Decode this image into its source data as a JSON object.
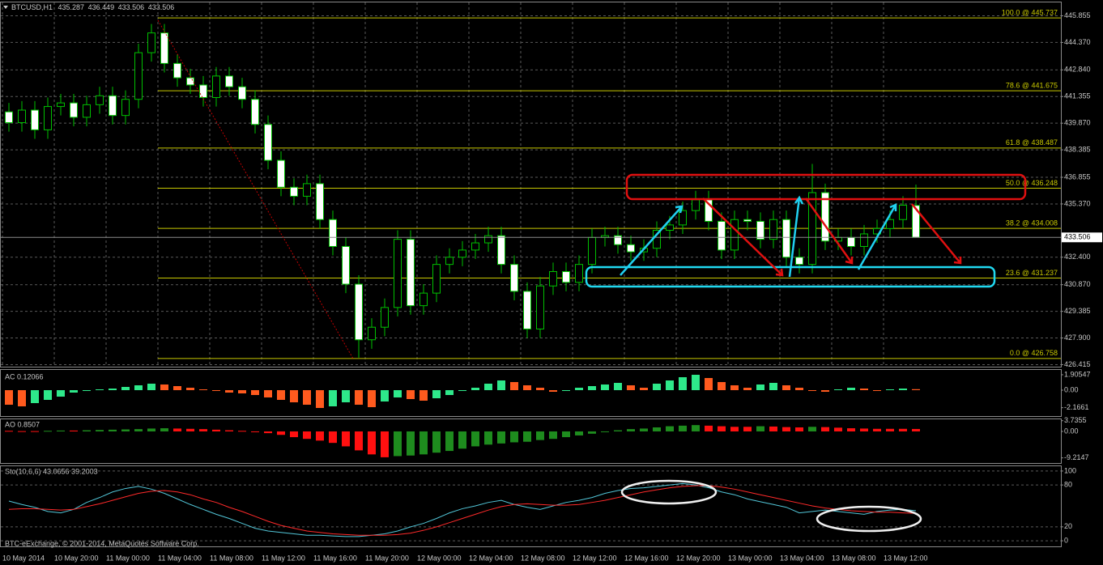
{
  "footer": "BTC-eExchange, © 2001-2014, MetaQuotes Software Corp.",
  "chart_data": [
    {
      "type": "candlestick",
      "symbol": "BTCUSD,H1",
      "x": [
        "10 May 2014",
        null,
        null,
        null,
        "10 May 20:00",
        null,
        null,
        null,
        "11 May 00:00",
        null,
        null,
        null,
        "11 May 04:00",
        null,
        null,
        null,
        "11 May 08:00",
        null,
        null,
        null,
        "11 May 12:00",
        null,
        null,
        null,
        "11 May 16:00",
        null,
        null,
        null,
        "11 May 20:00",
        null,
        null,
        null,
        "12 May 00:00",
        null,
        null,
        null,
        "12 May 04:00",
        null,
        null,
        null,
        "12 May 08:00",
        null,
        null,
        null,
        "12 May 12:00",
        null,
        null,
        null,
        "12 May 16:00",
        null,
        null,
        null,
        "12 May 20:00",
        null,
        null,
        null,
        "13 May 00:00",
        null,
        null,
        null,
        "13 May 04:00",
        null,
        null,
        null,
        "13 May 08:00",
        null,
        null,
        null,
        "13 May 12:00",
        null,
        null
      ],
      "ohlc": [
        [
          440.5,
          441.0,
          439.4,
          439.9
        ],
        [
          439.9,
          441.1,
          439.4,
          440.6
        ],
        [
          440.6,
          441.1,
          439.0,
          439.5
        ],
        [
          439.5,
          441.3,
          439.0,
          440.8
        ],
        [
          440.8,
          441.5,
          440.3,
          441.0
        ],
        [
          441.0,
          441.5,
          439.7,
          440.2
        ],
        [
          440.2,
          441.4,
          439.7,
          440.9
        ],
        [
          440.9,
          441.9,
          440.4,
          441.4
        ],
        [
          441.4,
          441.9,
          439.8,
          440.3
        ],
        [
          440.3,
          441.7,
          439.8,
          441.2
        ],
        [
          441.2,
          444.3,
          440.7,
          443.8
        ],
        [
          443.8,
          445.4,
          443.3,
          444.9
        ],
        [
          444.9,
          445.4,
          442.7,
          443.2
        ],
        [
          443.2,
          443.7,
          441.9,
          442.4
        ],
        [
          442.4,
          442.9,
          441.5,
          442.0
        ],
        [
          442.0,
          442.5,
          440.8,
          441.3
        ],
        [
          441.3,
          443.0,
          440.8,
          442.5
        ],
        [
          442.5,
          443.0,
          441.4,
          441.9
        ],
        [
          441.9,
          442.4,
          440.7,
          441.2
        ],
        [
          441.2,
          441.7,
          439.3,
          439.8
        ],
        [
          439.8,
          440.3,
          437.3,
          437.8
        ],
        [
          437.8,
          438.3,
          435.8,
          436.3
        ],
        [
          436.3,
          436.8,
          435.3,
          435.8
        ],
        [
          435.8,
          437.0,
          435.3,
          436.5
        ],
        [
          436.5,
          437.0,
          434.0,
          434.5
        ],
        [
          434.5,
          435.0,
          432.5,
          433.0
        ],
        [
          433.0,
          433.5,
          430.4,
          430.9
        ],
        [
          430.9,
          431.4,
          426.8,
          427.8
        ],
        [
          427.8,
          429.0,
          427.3,
          428.5
        ],
        [
          428.5,
          430.1,
          428.0,
          429.6
        ],
        [
          429.6,
          433.9,
          429.1,
          433.4
        ],
        [
          433.4,
          433.9,
          429.2,
          429.7
        ],
        [
          429.7,
          430.9,
          429.2,
          430.4
        ],
        [
          430.4,
          432.5,
          429.9,
          432.0
        ],
        [
          432.0,
          432.9,
          431.5,
          432.4
        ],
        [
          432.4,
          433.3,
          431.9,
          432.8
        ],
        [
          432.8,
          433.7,
          432.3,
          433.2
        ],
        [
          433.2,
          434.1,
          432.7,
          433.6
        ],
        [
          433.6,
          434.1,
          431.5,
          432.0
        ],
        [
          432.0,
          432.5,
          430.0,
          430.5
        ],
        [
          430.5,
          431.0,
          427.9,
          428.4
        ],
        [
          428.4,
          431.3,
          427.9,
          430.8
        ],
        [
          430.8,
          432.1,
          430.3,
          431.6
        ],
        [
          431.6,
          432.1,
          430.5,
          431.0
        ],
        [
          431.0,
          432.5,
          430.5,
          432.0
        ],
        [
          432.0,
          434.0,
          431.5,
          433.5
        ],
        [
          433.5,
          434.1,
          433.0,
          433.6
        ],
        [
          433.6,
          434.1,
          432.6,
          433.1
        ],
        [
          433.1,
          433.6,
          432.2,
          432.7
        ],
        [
          432.7,
          433.4,
          432.2,
          432.9
        ],
        [
          432.9,
          434.4,
          432.4,
          433.9
        ],
        [
          433.9,
          434.7,
          433.4,
          434.2
        ],
        [
          434.2,
          435.5,
          433.7,
          435.0
        ],
        [
          435.0,
          436.1,
          434.5,
          435.6
        ],
        [
          435.6,
          436.1,
          433.9,
          434.4
        ],
        [
          434.4,
          434.9,
          432.3,
          432.8
        ],
        [
          432.8,
          435.0,
          432.3,
          434.5
        ],
        [
          434.5,
          435.0,
          433.9,
          434.4
        ],
        [
          434.4,
          434.9,
          432.9,
          433.4
        ],
        [
          433.4,
          435.0,
          432.9,
          434.5
        ],
        [
          434.5,
          435.0,
          431.9,
          432.4
        ],
        [
          432.4,
          432.9,
          431.5,
          432.0
        ],
        [
          432.0,
          437.6,
          431.5,
          436.0
        ],
        [
          436.0,
          436.5,
          432.8,
          433.3
        ],
        [
          433.3,
          434.0,
          432.8,
          433.5
        ],
        [
          433.5,
          434.0,
          432.5,
          433.0
        ],
        [
          433.0,
          434.2,
          432.5,
          433.7
        ],
        [
          433.7,
          434.5,
          433.2,
          434.0
        ],
        [
          434.0,
          435.0,
          433.5,
          434.5
        ],
        [
          434.5,
          435.8,
          434.0,
          435.3
        ],
        [
          435.287,
          436.449,
          433.506,
          433.506
        ]
      ],
      "up_color": "#00c000",
      "down_color": "#ffffff",
      "grid": true,
      "ylim": [
        426.3,
        446.6
      ],
      "yticks": [
        445.855,
        {
          "value": 444.37,
          "label": "444.370"
        },
        {
          "value": 442.84,
          "label": "442.840"
        },
        441.355,
        {
          "value": 439.87,
          "label": "439.870"
        },
        438.385,
        436.855,
        {
          "value": 435.37,
          "label": "435.370"
        },
        {
          "value": 432.4,
          "label": "432.400"
        },
        {
          "value": 430.87,
          "label": "430.870"
        },
        429.385,
        {
          "value": 427.9,
          "label": "427.900"
        },
        426.415
      ],
      "fib_color": "#c8c800",
      "fib_levels": [
        {
          "value": 445.737,
          "label": "100.0 @ 445.737"
        },
        {
          "value": 441.675,
          "label": "78.6 @ 441.675"
        },
        {
          "value": 438.487,
          "label": "61.8 @ 438.487"
        },
        {
          "value": 436.248,
          "label": "50.0 @ 436.248"
        },
        {
          "value": 434.008,
          "label": "38.2 @ 434.008"
        },
        {
          "value": 431.237,
          "label": "23.6 @ 431.237"
        },
        {
          "value": 426.758,
          "label": "0.0 @ 426.758"
        }
      ]
    },
    {
      "type": "bar",
      "title": "AC 0.12066",
      "up_color": "#2ee88a",
      "down_color": "#ff5a1e",
      "grid": false,
      "ylim": [
        -3.2,
        2.6
      ],
      "yticks": [
        1.90547,
        {
          "value": 0,
          "label": "0.00"
        },
        -2.1661
      ],
      "values": [
        -1.8,
        -2.0,
        -1.6,
        -1.2,
        -0.8,
        -0.3,
        -0.1,
        0.1,
        0.2,
        0.4,
        0.6,
        0.8,
        0.7,
        0.5,
        0.3,
        0.1,
        -0.1,
        -0.3,
        -0.4,
        -0.6,
        -0.9,
        -1.2,
        -1.5,
        -1.8,
        -2.2,
        -2.0,
        -1.5,
        -1.8,
        -2.1,
        -1.4,
        -0.9,
        -1.1,
        -1.3,
        -1.0,
        -0.6,
        -0.1,
        0.3,
        0.8,
        1.2,
        1.0,
        0.6,
        0.3,
        -0.2,
        0.0,
        0.3,
        0.5,
        0.7,
        0.9,
        0.6,
        0.3,
        0.8,
        1.2,
        1.6,
        1.9,
        1.5,
        1.0,
        0.6,
        0.3,
        0.7,
        0.9,
        0.6,
        0.3,
        -0.1,
        -0.2,
        0.1,
        0.3,
        0.2,
        -0.1,
        0.1,
        0.2,
        0.12066
      ]
    },
    {
      "type": "bar",
      "title": "AO 0.8507",
      "up_color": "#1e8c1e",
      "down_color": "#ff1010",
      "grid": false,
      "ylim": [
        -11,
        4.5
      ],
      "yticks": [
        3.7355,
        {
          "value": 0,
          "label": "0.00"
        },
        -9.2147
      ],
      "values": [
        0.2,
        0.1,
        0.1,
        0.2,
        0.3,
        0.3,
        0.4,
        0.5,
        0.6,
        0.7,
        0.8,
        1.0,
        1.1,
        1.0,
        0.9,
        0.8,
        0.6,
        0.4,
        0.2,
        -0.1,
        -0.6,
        -1.2,
        -2.0,
        -2.6,
        -3.2,
        -4.0,
        -5.2,
        -6.6,
        -8.0,
        -9.0,
        -8.6,
        -8.4,
        -8.0,
        -7.4,
        -6.8,
        -6.0,
        -5.2,
        -4.6,
        -4.2,
        -3.8,
        -3.6,
        -3.0,
        -2.6,
        -2.0,
        -1.4,
        -0.8,
        -0.2,
        0.4,
        0.8,
        1.0,
        1.4,
        1.8,
        2.0,
        2.2,
        2.0,
        1.8,
        1.6,
        1.6,
        1.8,
        1.7,
        1.5,
        1.4,
        1.6,
        1.5,
        1.3,
        1.1,
        1.0,
        0.9,
        0.9,
        0.9,
        0.8507
      ]
    },
    {
      "type": "line",
      "title": "Sto(10,6,6) 43.0656 39.2003",
      "grid": true,
      "ylim": [
        -8,
        108
      ],
      "yticks": [
        100,
        80,
        20,
        0
      ],
      "series": [
        {
          "color": "#52c6d8",
          "values": [
            57,
            52,
            48,
            42,
            40,
            45,
            55,
            62,
            70,
            75,
            78,
            74,
            68,
            60,
            52,
            45,
            38,
            32,
            25,
            18,
            14,
            12,
            10,
            8,
            8,
            7,
            6,
            6,
            8,
            10,
            14,
            20,
            25,
            32,
            40,
            46,
            50,
            55,
            58,
            52,
            48,
            45,
            50,
            55,
            58,
            62,
            68,
            72,
            75,
            76,
            78,
            80,
            82,
            80,
            76,
            70,
            66,
            60,
            56,
            52,
            48,
            40,
            42,
            44,
            42,
            40,
            38,
            42,
            44,
            45,
            43.0656
          ]
        },
        {
          "color": "#ff2a2a",
          "values": [
            45,
            46,
            46,
            45,
            44,
            45,
            49,
            53,
            58,
            63,
            68,
            71,
            72,
            70,
            66,
            60,
            55,
            48,
            42,
            35,
            28,
            22,
            18,
            14,
            12,
            10,
            9,
            8,
            8,
            8,
            9,
            11,
            15,
            20,
            26,
            32,
            38,
            44,
            49,
            52,
            53,
            52,
            51,
            51,
            52,
            55,
            58,
            62,
            66,
            70,
            73,
            76,
            78,
            79,
            79,
            77,
            74,
            70,
            66,
            62,
            58,
            54,
            50,
            47,
            45,
            43,
            42,
            41,
            41,
            40,
            39.2003
          ]
        }
      ]
    }
  ]
}
